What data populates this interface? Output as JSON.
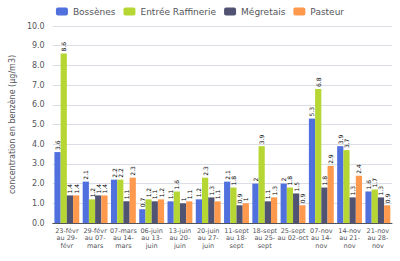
{
  "chart_data": {
    "type": "bar",
    "ylabel": "concentration en benzène (µg/m3)",
    "categories": [
      "23-févr\nau 29-\nfévr",
      "29-févr\nau 07-\nmars",
      "07-mars\nau 14-\nmars",
      "06-juin\nau 13-\njuin",
      "13-juin\nau 20-\njuin",
      "20-juin\nau 27-\njuin",
      "11-sept\nau 18-\nsept",
      "18-sept\nau 25-\nsept",
      "25-sept\nau 02-oct",
      "07-nov\nau 14-\nnov",
      "14-nov\nau 21-\nnov",
      "21-nov\nau 28-\nnov"
    ],
    "series": [
      {
        "name": "Bossènes",
        "values": [
          3.6,
          2.1,
          2.2,
          0.7,
          1.1,
          1.2,
          2.1,
          2.0,
          2.0,
          5.3,
          3.9,
          1.6
        ],
        "value_labels": [
          "3.6",
          "2.1",
          "2.2",
          "0.7",
          "1.1",
          "1.2",
          "2.1",
          "2",
          "2",
          "5.3",
          "3.9",
          "1.6"
        ]
      },
      {
        "name": "Entrée Raffinerie",
        "values": [
          8.6,
          1.2,
          2.2,
          1.2,
          1.6,
          2.3,
          1.8,
          3.9,
          1.8,
          6.8,
          3.7,
          1.7
        ],
        "value_labels": [
          "8.6",
          "1.2",
          "2.2",
          "1.2",
          "1.6",
          "2.3",
          "1.8",
          "3.9",
          "1.8",
          "6.8",
          "3.7",
          "1.7"
        ]
      },
      {
        "name": "Mégretais",
        "values": [
          1.4,
          1.4,
          1.1,
          1.1,
          1.0,
          1.3,
          0.9,
          1.1,
          1.5,
          1.8,
          1.3,
          1.3
        ],
        "value_labels": [
          "1.4",
          "1.4",
          "1.1",
          "1.1",
          "1",
          "1.3",
          "0.9",
          "1.1",
          "1.5",
          "1.8",
          "1.3",
          "1.3"
        ]
      },
      {
        "name": "Pasteur",
        "values": [
          1.4,
          1.4,
          2.3,
          1.2,
          1.1,
          1.1,
          1.0,
          1.3,
          0.9,
          2.9,
          2.4,
          0.9
        ],
        "value_labels": [
          "1.4",
          "1.4",
          "2.3",
          "1.2",
          "1.1",
          "1.1",
          "1",
          "1.3",
          "0.9",
          "2.9",
          "2.4",
          "0.9"
        ]
      }
    ],
    "ylim": [
      0.0,
      10.0
    ],
    "yticks": [
      {
        "value": 0,
        "label": "0.0"
      },
      {
        "value": 1,
        "label": "1.0"
      },
      {
        "value": 2,
        "label": "2.0"
      },
      {
        "value": 3,
        "label": "3.0"
      },
      {
        "value": 4,
        "label": "4.0"
      },
      {
        "value": 5,
        "label": "5.0"
      },
      {
        "value": 6,
        "label": "6.0"
      },
      {
        "value": 7,
        "label": "7.0"
      },
      {
        "value": 8,
        "label": "8.0"
      },
      {
        "value": 9,
        "label": "9.0"
      },
      {
        "value": 10,
        "label": "10.0"
      }
    ],
    "grid": true,
    "legend": "top",
    "data_labels": true
  }
}
